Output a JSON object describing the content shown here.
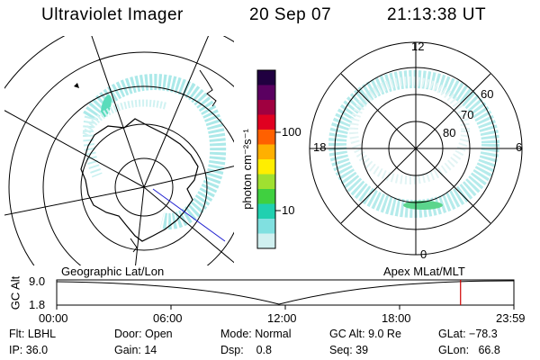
{
  "header": {
    "instrument": "Ultraviolet Imager",
    "date": "20 Sep 07",
    "time": "21:13:38 UT"
  },
  "colorbar": {
    "unit_label": "photon cm⁻²s⁻¹",
    "ticks": [
      "100",
      "10"
    ],
    "colors": [
      "#200040",
      "#5a0060",
      "#a00040",
      "#e00020",
      "#ff6000",
      "#ffb000",
      "#ffee00",
      "#a0e030",
      "#40d040",
      "#20d0b0",
      "#80e0e0",
      "#d0f0f0"
    ]
  },
  "left_map": {
    "label": "Geographic Lat/Lon"
  },
  "right_map": {
    "label": "Apex MLat/MLT",
    "mlt_labels": {
      "top": "12",
      "left": "18",
      "right": "6",
      "bottom": "0"
    },
    "lat_labels": [
      "60",
      "70",
      "80"
    ]
  },
  "altitude_plot": {
    "ylabel": "GC Alt",
    "yticks": [
      "9.0",
      "1.8"
    ],
    "xticks": [
      "00:00",
      "06:00",
      "12:00",
      "18:00",
      "23:59"
    ],
    "current_marker_hours": 21.2
  },
  "footer": {
    "flt": "Flt: LBHL",
    "door": "Door: Open",
    "mode": "Mode: Normal",
    "gc_alt": "GC Alt: 9.0 Re",
    "glat": "GLat: −78.3",
    "ip": "IP: 36.0",
    "gain": "Gain: 14",
    "dsp": "Dsp:    0.8",
    "seq": "Seq: 39",
    "glon": "GLon:   66.8"
  }
}
